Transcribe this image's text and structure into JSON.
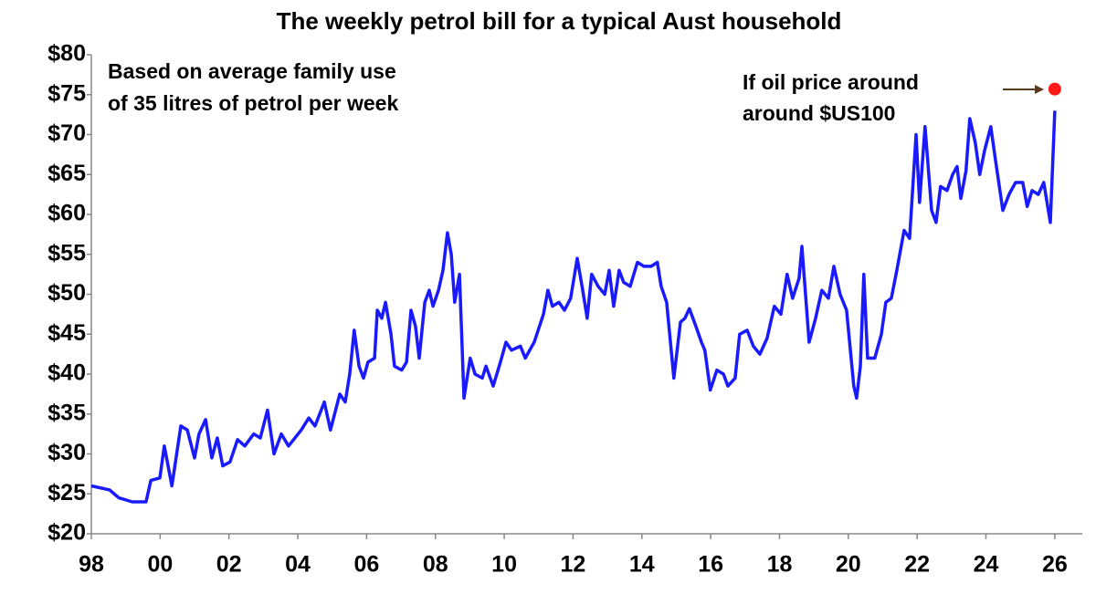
{
  "chart_data": {
    "type": "line",
    "title": "The weekly petrol bill for a typical Aust household",
    "xlim": [
      1998,
      2026.8
    ],
    "xticks": [
      {
        "value": 1998,
        "label": "98"
      },
      {
        "value": 2000,
        "label": "00"
      },
      {
        "value": 2002,
        "label": "02"
      },
      {
        "value": 2004,
        "label": "04"
      },
      {
        "value": 2006,
        "label": "06"
      },
      {
        "value": 2008,
        "label": "08"
      },
      {
        "value": 2010,
        "label": "10"
      },
      {
        "value": 2012,
        "label": "12"
      },
      {
        "value": 2014,
        "label": "14"
      },
      {
        "value": 2016,
        "label": "16"
      },
      {
        "value": 2018,
        "label": "18"
      },
      {
        "value": 2020,
        "label": "20"
      },
      {
        "value": 2022,
        "label": "22"
      },
      {
        "value": 2024,
        "label": "24"
      },
      {
        "value": 2026,
        "label": "26"
      }
    ],
    "ylim": [
      20,
      80
    ],
    "yticks": [
      {
        "value": 20,
        "label": "$20"
      },
      {
        "value": 25,
        "label": "$25"
      },
      {
        "value": 30,
        "label": "$30"
      },
      {
        "value": 35,
        "label": "$35"
      },
      {
        "value": 40,
        "label": "$40"
      },
      {
        "value": 45,
        "label": "$45"
      },
      {
        "value": 50,
        "label": "$50"
      },
      {
        "value": 55,
        "label": "$55"
      },
      {
        "value": 60,
        "label": "$60"
      },
      {
        "value": 65,
        "label": "$65"
      },
      {
        "value": 70,
        "label": "$70"
      },
      {
        "value": 75,
        "label": "$75"
      },
      {
        "value": 80,
        "label": "$80"
      }
    ],
    "grid": false,
    "series": [
      {
        "color": "#1a1aff",
        "x": [
          1998.0,
          1998.53,
          1998.8,
          1999.19,
          1999.59,
          1999.73,
          1999.99,
          2000.12,
          2000.34,
          2000.6,
          2000.79,
          2001.0,
          2001.13,
          2001.32,
          2001.5,
          2001.66,
          2001.82,
          2002.03,
          2002.25,
          2002.46,
          2002.72,
          2002.91,
          2003.12,
          2003.31,
          2003.52,
          2003.73,
          2004.1,
          2004.32,
          2004.5,
          2004.77,
          2004.95,
          2005.22,
          2005.38,
          2005.51,
          2005.64,
          2005.78,
          2005.91,
          2006.04,
          2006.23,
          2006.31,
          2006.44,
          2006.55,
          2006.71,
          2006.81,
          2007.02,
          2007.16,
          2007.29,
          2007.42,
          2007.53,
          2007.69,
          2007.82,
          2007.93,
          2008.09,
          2008.22,
          2008.35,
          2008.46,
          2008.56,
          2008.7,
          2008.83,
          2009.01,
          2009.15,
          2009.36,
          2009.47,
          2009.68,
          2009.89,
          2010.05,
          2010.21,
          2010.47,
          2010.61,
          2010.87,
          2011.14,
          2011.27,
          2011.4,
          2011.59,
          2011.75,
          2011.93,
          2012.12,
          2012.28,
          2012.41,
          2012.54,
          2012.73,
          2012.92,
          2013.05,
          2013.18,
          2013.34,
          2013.47,
          2013.66,
          2013.87,
          2014.06,
          2014.27,
          2014.45,
          2014.56,
          2014.72,
          2014.93,
          2015.12,
          2015.25,
          2015.38,
          2015.57,
          2015.73,
          2015.83,
          2015.99,
          2016.18,
          2016.37,
          2016.5,
          2016.71,
          2016.84,
          2017.06,
          2017.24,
          2017.43,
          2017.64,
          2017.85,
          2018.04,
          2018.22,
          2018.38,
          2018.57,
          2018.65,
          2018.86,
          2019.05,
          2019.23,
          2019.42,
          2019.58,
          2019.76,
          2019.95,
          2020.16,
          2020.24,
          2020.35,
          2020.45,
          2020.56,
          2020.77,
          2020.96,
          2021.09,
          2021.25,
          2021.41,
          2021.62,
          2021.78,
          2021.97,
          2022.07,
          2022.23,
          2022.42,
          2022.55,
          2022.68,
          2022.87,
          2023.03,
          2023.16,
          2023.27,
          2023.42,
          2023.53,
          2023.69,
          2023.82,
          2023.96,
          2024.14,
          2024.27,
          2024.49,
          2024.67,
          2024.86,
          2025.07,
          2025.2,
          2025.34,
          2025.52,
          2025.68,
          2025.87,
          2026.0
        ],
        "values": [
          26,
          25.5,
          24.5,
          24,
          24,
          26.7,
          27,
          31,
          26,
          33.5,
          33,
          29.5,
          32.5,
          34.3,
          29.5,
          32,
          28.5,
          29,
          31.8,
          31,
          32.5,
          32,
          35.5,
          30,
          32.5,
          31,
          33,
          34.5,
          33.5,
          36.5,
          33,
          37.5,
          36.5,
          40,
          45.5,
          41,
          39.5,
          41.5,
          42,
          48,
          47,
          49,
          45,
          41,
          40.5,
          41.5,
          48,
          46,
          42,
          49,
          50.5,
          48.5,
          50.5,
          53,
          57.7,
          55,
          49,
          52.5,
          37,
          42,
          40,
          39.5,
          41,
          38.5,
          41.5,
          44,
          43,
          43.5,
          42,
          44,
          47.5,
          50.5,
          48.5,
          49,
          48,
          49.5,
          54.5,
          50.5,
          47,
          52.5,
          51,
          50,
          53,
          48.5,
          53,
          51.5,
          51,
          54,
          53.5,
          53.5,
          54,
          51,
          49,
          39.5,
          46.5,
          47,
          48.2,
          46,
          44,
          43,
          38,
          40.5,
          40,
          38.5,
          39.5,
          45,
          45.5,
          43.5,
          42.5,
          44.5,
          48.5,
          47.5,
          52.5,
          49.5,
          52,
          56,
          44,
          47,
          50.5,
          49.5,
          53.5,
          50,
          48,
          38.5,
          37,
          41,
          52.5,
          42,
          42,
          45,
          49,
          49.5,
          53,
          58,
          57,
          70,
          61.5,
          71,
          60.5,
          59,
          63.5,
          63,
          65,
          66,
          62,
          65.5,
          72,
          69,
          65,
          68,
          71,
          67,
          60.5,
          62.5,
          64,
          64,
          61,
          63,
          62.5,
          64,
          59,
          73
        ]
      }
    ],
    "annotations": [
      {
        "lines": [
          "Based on average family use",
          "of 35 litres of petrol per week"
        ]
      },
      {
        "lines": [
          "If oil price around",
          "around $US100"
        ],
        "x": 2026,
        "y": 75.7,
        "color": "#ff1a1a"
      }
    ]
  }
}
